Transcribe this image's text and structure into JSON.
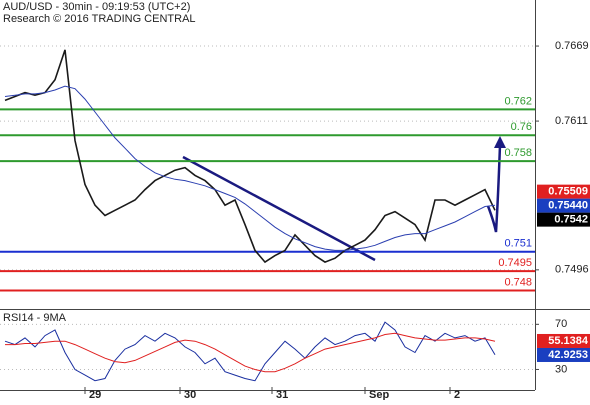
{
  "chart_data": [
    {
      "type": "line",
      "title": "AUD/USD - 30min - 09:19:53 (UTC+2)",
      "subtitle": "Research © 2016 TRADING CENTRAL",
      "x": [
        0,
        1,
        2,
        3,
        4,
        5,
        6,
        7,
        8,
        9,
        10,
        11,
        12,
        13,
        14,
        15,
        16,
        17,
        18,
        19,
        20,
        21,
        22,
        23,
        24,
        25,
        26,
        27,
        28,
        29,
        30,
        31,
        32,
        33,
        34,
        35,
        36,
        37,
        38,
        39,
        40,
        41,
        42,
        43,
        44,
        45,
        46,
        47,
        48,
        49
      ],
      "xlim": [
        -0.5,
        53
      ],
      "ylim": [
        0.74665,
        0.77046
      ],
      "yticks": [
        0.7669,
        0.7611,
        0.7496
      ],
      "series": [
        {
          "color": "#1a1a1a",
          "values": [
            0.7627,
            0.763,
            0.7633,
            0.7631,
            0.7633,
            0.7643,
            0.7666,
            0.7596,
            0.7562,
            0.7546,
            0.7538,
            0.7542,
            0.7546,
            0.755,
            0.7558,
            0.7565,
            0.7569,
            0.7573,
            0.7575,
            0.7569,
            0.7565,
            0.7558,
            0.7546,
            0.755,
            0.7531,
            0.7511,
            0.7502,
            0.7507,
            0.7511,
            0.7523,
            0.7515,
            0.7507,
            0.7502,
            0.7505,
            0.7511,
            0.7515,
            0.7519,
            0.7527,
            0.7538,
            0.7541,
            0.7536,
            0.7531,
            0.7519,
            0.755,
            0.755,
            0.7546,
            0.755,
            0.7554,
            0.7558,
            0.7542
          ]
        },
        {
          "color": "#2b3fb0",
          "values": [
            0.763,
            0.7631,
            0.7632,
            0.7632,
            0.7633,
            0.7635,
            0.7638,
            0.7636,
            0.7628,
            0.7618,
            0.7608,
            0.7598,
            0.759,
            0.7582,
            0.7576,
            0.7571,
            0.7568,
            0.7566,
            0.7565,
            0.7563,
            0.7561,
            0.7558,
            0.7555,
            0.7552,
            0.7547,
            0.7541,
            0.7535,
            0.7529,
            0.7524,
            0.752,
            0.7517,
            0.7514,
            0.7512,
            0.7511,
            0.7511,
            0.7512,
            0.7513,
            0.7515,
            0.7518,
            0.7521,
            0.7523,
            0.7524,
            0.7524,
            0.7527,
            0.753,
            0.7533,
            0.7537,
            0.7541,
            0.7545,
            0.7546
          ]
        }
      ],
      "levels": [
        {
          "value": 0.762,
          "color": "#2e9a2e"
        },
        {
          "value": 0.76,
          "color": "#2e9a2e"
        },
        {
          "value": 0.758,
          "color": "#2e9a2e"
        },
        {
          "value": 0.751,
          "color": "#1a2fd0"
        },
        {
          "value": 0.7495,
          "color": "#e02020"
        },
        {
          "value": 0.748,
          "color": "#e02020"
        }
      ],
      "tags": [
        {
          "value": 0.75509,
          "color": "#e02020"
        },
        {
          "value": 0.7544,
          "label": "0.75440",
          "color": "#1a3fc0"
        },
        {
          "value": 0.7542,
          "color": "#000000"
        }
      ]
    },
    {
      "type": "line",
      "title": "RSI14 - 9MA",
      "x": [
        0,
        1,
        2,
        3,
        4,
        5,
        6,
        7,
        8,
        9,
        10,
        11,
        12,
        13,
        14,
        15,
        16,
        17,
        18,
        19,
        20,
        21,
        22,
        23,
        24,
        25,
        26,
        27,
        28,
        29,
        30,
        31,
        32,
        33,
        34,
        35,
        36,
        37,
        38,
        39,
        40,
        41,
        42,
        43,
        44,
        45,
        46,
        47,
        48,
        49
      ],
      "xlim": [
        -0.5,
        53
      ],
      "ylim": [
        11.8,
        81.8
      ],
      "yticks": [
        70,
        30
      ],
      "xticks": [
        {
          "value": 8,
          "label": "29"
        },
        {
          "value": 17.5,
          "label": "30"
        },
        {
          "value": 26.7,
          "label": "31"
        },
        {
          "value": 36,
          "label": "Sep"
        },
        {
          "value": 44.5,
          "label": "2"
        }
      ],
      "series": [
        {
          "color": "#1a2fa0",
          "values": [
            55,
            52,
            58,
            50,
            60,
            65,
            45,
            30,
            25,
            20,
            22,
            38,
            48,
            52,
            60,
            55,
            62,
            58,
            50,
            45,
            35,
            40,
            28,
            25,
            22,
            20,
            35,
            45,
            55,
            48,
            40,
            50,
            58,
            52,
            55,
            60,
            62,
            55,
            72,
            65,
            50,
            45,
            60,
            55,
            62,
            58,
            60,
            55,
            58,
            43
          ]
        },
        {
          "color": "#e02020",
          "values": [
            52,
            52,
            53,
            53,
            54,
            55,
            55,
            52,
            48,
            44,
            40,
            37,
            36,
            38,
            42,
            46,
            50,
            54,
            56,
            55,
            52,
            48,
            43,
            38,
            33,
            30,
            28,
            28,
            31,
            35,
            40,
            44,
            48,
            50,
            52,
            54,
            56,
            58,
            61,
            62,
            60,
            58,
            57,
            56,
            56,
            57,
            58,
            58,
            57,
            55
          ]
        }
      ],
      "tags": [
        {
          "value": 55.1384,
          "color": "#e02020"
        },
        {
          "value": 42.9253,
          "color": "#1a3fc0"
        }
      ]
    }
  ]
}
